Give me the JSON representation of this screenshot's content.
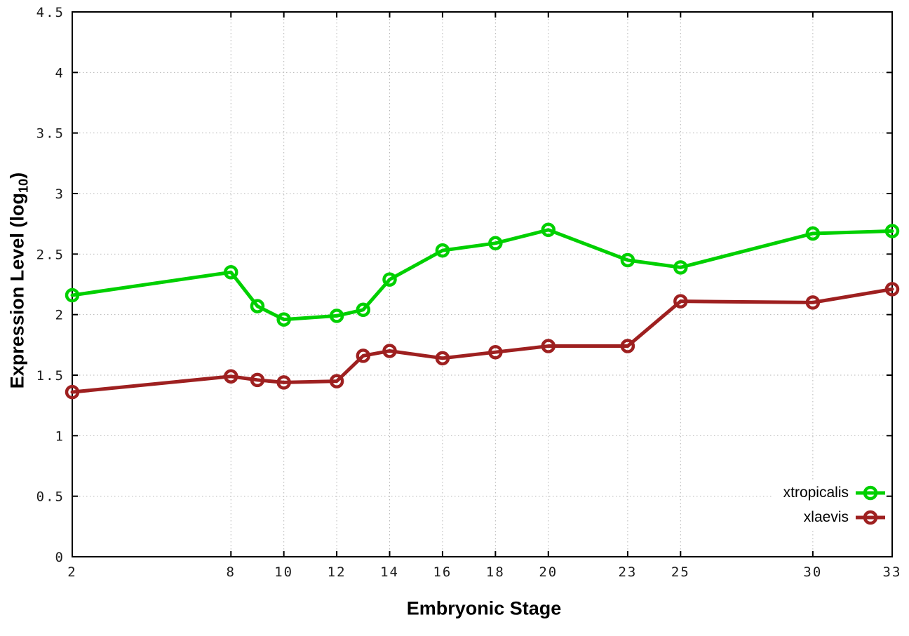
{
  "chart_data": {
    "type": "line",
    "title": "",
    "xlabel": "Embryonic Stage",
    "ylabel": {
      "prefix": "Expression Level (log",
      "sub": "10",
      "suffix": ")"
    },
    "x_axis": {
      "min": 2,
      "max": 33,
      "tick_values": [
        2,
        8,
        10,
        12,
        14,
        16,
        18,
        20,
        23,
        25,
        30,
        33
      ],
      "tick_labels": [
        "2",
        "8",
        "10",
        "12",
        "14",
        "16",
        "18",
        "20",
        "23",
        "25",
        "30",
        "33"
      ]
    },
    "y_axis": {
      "min": 0,
      "max": 4.5,
      "tick_values": [
        0,
        0.5,
        1,
        1.5,
        2,
        2.5,
        3,
        3.5,
        4,
        4.5
      ],
      "tick_labels": [
        "0",
        "0.5",
        "1",
        "1.5",
        "2",
        "2.5",
        "3",
        "3.5",
        "4",
        "4.5"
      ]
    },
    "grid": true,
    "legend_position": "inside-bottom-right",
    "x": [
      2,
      8,
      9,
      10,
      12,
      13,
      14,
      16,
      18,
      20,
      23,
      25,
      30,
      33
    ],
    "series": [
      {
        "name": "xtropicalis",
        "color": "#00d000",
        "marker": "open-circle",
        "values": [
          2.16,
          2.35,
          2.07,
          1.96,
          1.99,
          2.04,
          2.29,
          2.53,
          2.59,
          2.7,
          2.45,
          2.39,
          2.67,
          2.69
        ]
      },
      {
        "name": "xlaevis",
        "color": "#9e2020",
        "marker": "open-circle",
        "values": [
          1.36,
          1.49,
          1.46,
          1.44,
          1.45,
          1.66,
          1.7,
          1.64,
          1.69,
          1.74,
          1.74,
          2.11,
          2.1,
          2.21
        ]
      }
    ],
    "style": {
      "grid_color": "#b4b4b4",
      "axis_color": "#000000",
      "tick_label_color": "#1c1c1c"
    }
  }
}
